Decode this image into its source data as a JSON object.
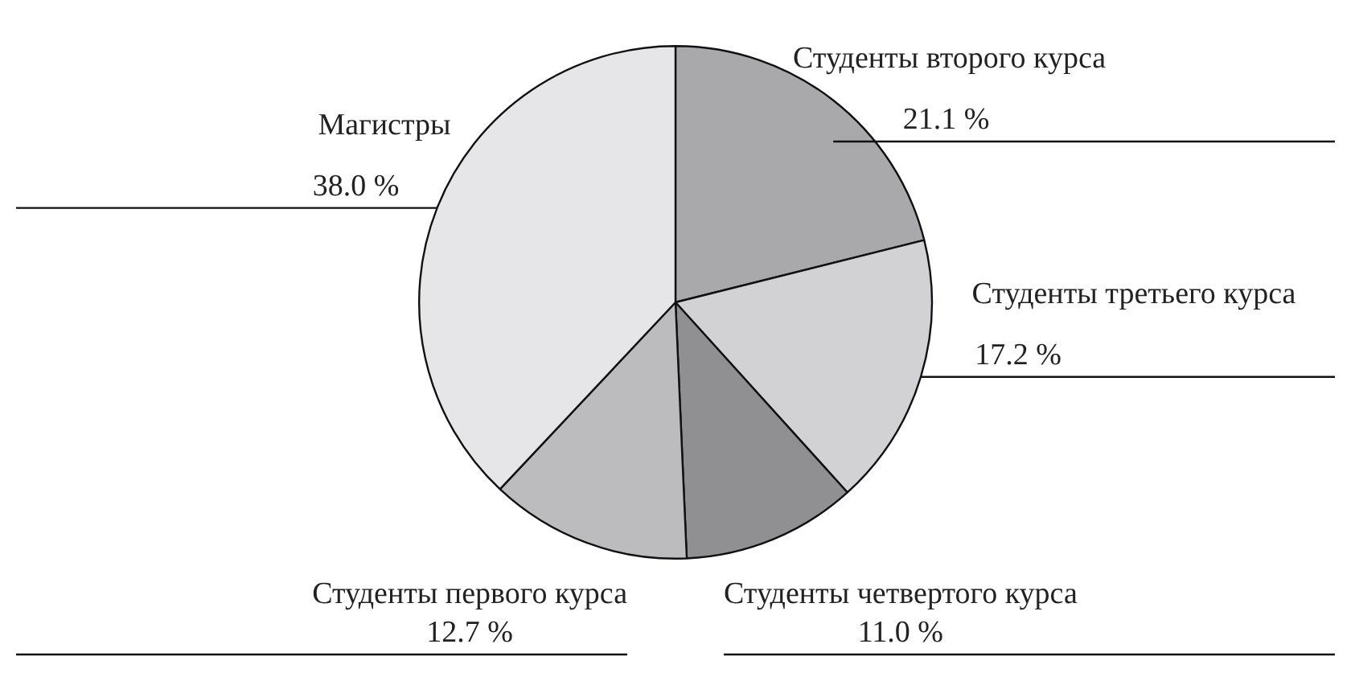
{
  "chart_data": {
    "type": "pie",
    "categories": [
      "Студенты второго курса",
      "Студенты третьего курса",
      "Студенты четвертого курса",
      "Студенты первого курса",
      "Магистры"
    ],
    "values": [
      21.1,
      17.2,
      11.0,
      12.7,
      38.0
    ],
    "value_labels": [
      "21.1 %",
      "17.2 %",
      "11.0 %",
      "12.7 %",
      "38.0 %"
    ],
    "colors": [
      "#a9a9ab",
      "#d2d2d4",
      "#909092",
      "#bcbcbe",
      "#e6e6e8"
    ],
    "legend": false
  }
}
